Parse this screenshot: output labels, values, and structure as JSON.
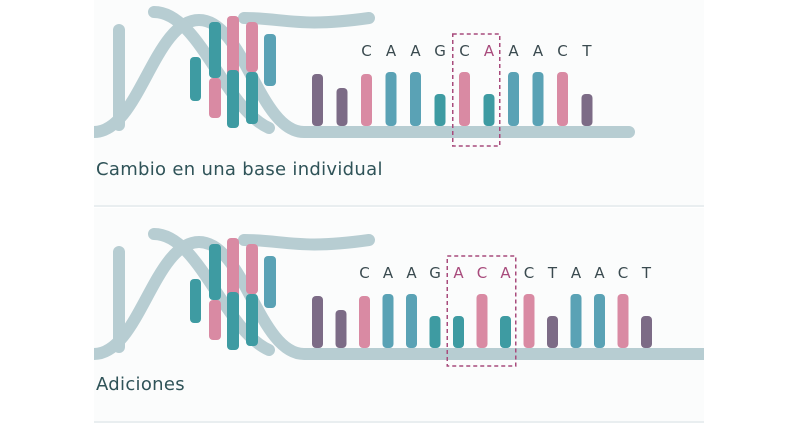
{
  "colors": {
    "backbone": "#b7cdd2",
    "teal": "#3e9ba2",
    "blue": "#5aa2b5",
    "pink": "#d98aa3",
    "purple": "#7c6b86",
    "letters": "#3a4a4f",
    "highlight": "#a84b7c"
  },
  "panels": [
    {
      "caption": "Cambio en una base individual",
      "letters": [
        "C",
        "A",
        "A",
        "G",
        "C",
        "A",
        "A",
        "A",
        "C",
        "T"
      ],
      "highlight_range": [
        4,
        5
      ],
      "highlight_letter_index": [
        5
      ]
    },
    {
      "caption": "Adiciones",
      "letters": [
        "C",
        "A",
        "A",
        "G",
        "A",
        "C",
        "A",
        "C",
        "T",
        "A",
        "A",
        "C",
        "T"
      ],
      "highlight_range": [
        4,
        6
      ],
      "highlight_letter_index": [
        4,
        5,
        6
      ]
    }
  ],
  "icons": {
    "dna_helix": "dna-helix-icon",
    "corner_decoration": "dna-corner-icon"
  }
}
